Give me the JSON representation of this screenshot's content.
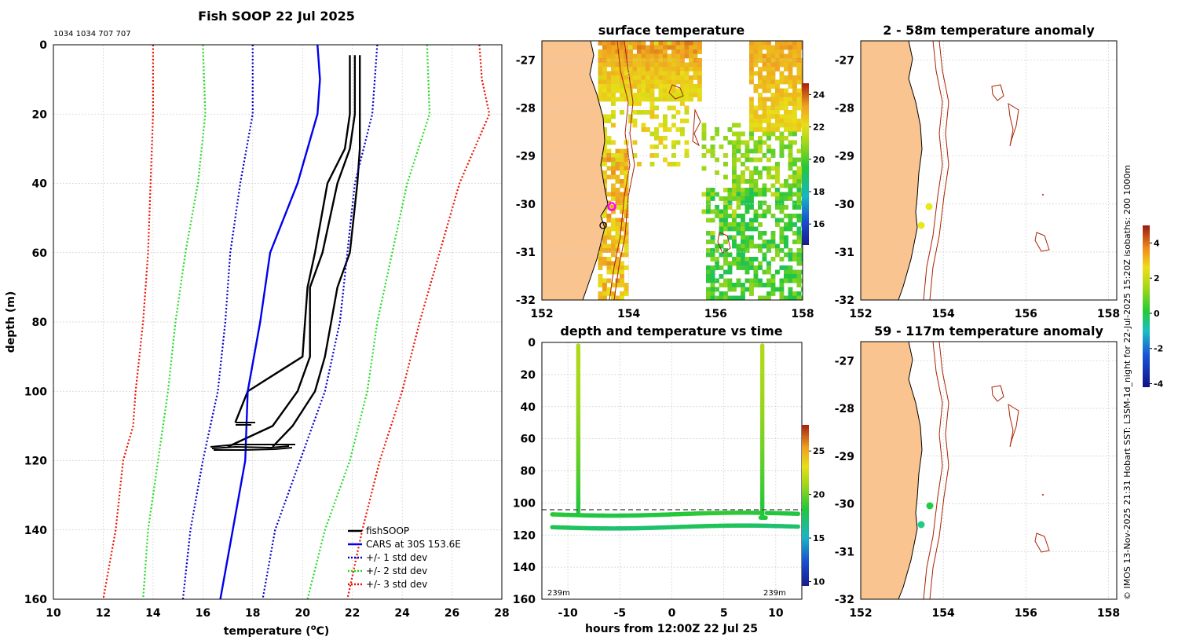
{
  "profile_panel": {
    "title": "Fish SOOP 22 Jul 2025",
    "counts": "1034 1034 707 707",
    "xlabel": "temperature (",
    "xlabel_sup": "o",
    "xlabel_end": "C)",
    "ylabel": "depth (m)",
    "legend": [
      "fishSOOP",
      "CARS at 30S 153.6E",
      "+/- 1 std dev",
      "+/- 2 std dev",
      "+/- 3 std dev"
    ]
  },
  "surface_panel": {
    "title": "surface temperature"
  },
  "time_panel": {
    "title": "depth and temperature vs time",
    "xlabel": "hours from 12:00Z 22 Jul 25",
    "depth_left": "239m",
    "depth_right": "239m"
  },
  "anom1_panel": {
    "title": "2 - 58m temperature anomaly"
  },
  "anom2_panel": {
    "title": "59 - 117m temperature anomaly"
  },
  "side_caption": "© IMOS 13-Nov-2025 21:31 Hobart SST: L3SM-1d_night for 22-Jul-2025 15:20Z isobaths: 200  1000m",
  "colors": {
    "fish": "#000000",
    "cars": "#0000ee",
    "std1": "#0000cc",
    "std2": "#22dd22",
    "std3": "#ee1100",
    "land": "#f9c48f",
    "isobath": "#aa2200",
    "marker_magenta": "#ff00ff",
    "marker_yellow": "#e8e81a",
    "marker_green": "#22cc44"
  },
  "chart_data": [
    {
      "type": "line",
      "title": "Fish SOOP 22 Jul 2025",
      "xlabel": "temperature (oC)",
      "ylabel": "depth (m)",
      "xlim": [
        10,
        28
      ],
      "ylim": [
        160,
        0
      ],
      "xticks": [
        10,
        12,
        14,
        16,
        18,
        20,
        22,
        24,
        26,
        28
      ],
      "yticks": [
        0,
        20,
        40,
        60,
        80,
        100,
        120,
        140,
        160
      ],
      "series": [
        {
          "name": "fishSOOP",
          "style": "solid",
          "color": "#000000",
          "depth": [
            3,
            20,
            30,
            40,
            60,
            70,
            90,
            100,
            110,
            116
          ],
          "temp": [
            22.1,
            22.1,
            21.9,
            21.4,
            20.8,
            20.3,
            20.3,
            19.8,
            18.8,
            17.0
          ]
        },
        {
          "name": "fishSOOP",
          "style": "solid",
          "color": "#000000",
          "depth": [
            3,
            20,
            30,
            40,
            60,
            70,
            90,
            100,
            110,
            116
          ],
          "temp": [
            22.3,
            22.3,
            22.3,
            22.2,
            21.9,
            21.4,
            20.9,
            20.5,
            19.6,
            18.8
          ]
        },
        {
          "name": "fishSOOP",
          "style": "solid",
          "color": "#000000",
          "depth": [
            3,
            20,
            30,
            40,
            60,
            70,
            90,
            95,
            100,
            109
          ],
          "temp": [
            21.9,
            21.9,
            21.7,
            21.0,
            20.5,
            20.2,
            20.0,
            18.9,
            17.8,
            17.3
          ]
        },
        {
          "name": "CARS at 30S 153.6E",
          "style": "solid",
          "color": "#0000ee",
          "depth": [
            0,
            10,
            20,
            40,
            60,
            80,
            100,
            120,
            140,
            160
          ],
          "temp": [
            20.6,
            20.7,
            20.6,
            19.8,
            18.7,
            18.3,
            17.8,
            17.7,
            17.2,
            16.7
          ]
        },
        {
          "name": "+/- 1 std dev (low)",
          "style": "dotted",
          "color": "#0000cc",
          "depth": [
            0,
            20,
            40,
            60,
            80,
            100,
            120,
            140,
            160
          ],
          "temp": [
            18.0,
            18.0,
            17.5,
            17.1,
            16.9,
            16.6,
            16.0,
            15.5,
            15.2
          ]
        },
        {
          "name": "+/- 1 std dev (high)",
          "style": "dotted",
          "color": "#0000cc",
          "depth": [
            0,
            20,
            40,
            60,
            80,
            100,
            120,
            140,
            160
          ],
          "temp": [
            23.0,
            22.8,
            22.1,
            21.8,
            21.5,
            20.9,
            19.9,
            18.9,
            18.4
          ]
        },
        {
          "name": "+/- 2 std dev (low)",
          "style": "dotted",
          "color": "#22dd22",
          "depth": [
            0,
            20,
            40,
            60,
            80,
            100,
            120,
            140,
            160
          ],
          "temp": [
            16.0,
            16.1,
            15.8,
            15.3,
            14.9,
            14.6,
            14.2,
            13.8,
            13.6
          ]
        },
        {
          "name": "+/- 2 std dev (high)",
          "style": "dotted",
          "color": "#22dd22",
          "depth": [
            0,
            20,
            40,
            60,
            80,
            100,
            120,
            140,
            160
          ],
          "temp": [
            25.0,
            25.1,
            24.2,
            23.6,
            23.0,
            22.6,
            21.9,
            20.9,
            20.2
          ]
        },
        {
          "name": "+/- 3 std dev (low)",
          "style": "dotted",
          "color": "#ee1100",
          "depth": [
            0,
            20,
            40,
            60,
            80,
            100,
            110,
            120,
            140,
            160
          ],
          "temp": [
            14.0,
            14.0,
            13.9,
            13.8,
            13.6,
            13.3,
            13.2,
            12.8,
            12.5,
            12.0
          ]
        },
        {
          "name": "+/- 3 std dev (high)",
          "style": "dotted",
          "color": "#ee1100",
          "depth": [
            0,
            10,
            20,
            40,
            60,
            80,
            100,
            120,
            140,
            160
          ],
          "temp": [
            27.1,
            27.2,
            27.5,
            26.3,
            25.5,
            24.7,
            24.0,
            23.1,
            22.4,
            21.8
          ]
        }
      ]
    },
    {
      "type": "heatmap",
      "title": "surface temperature",
      "xlim": [
        152,
        158
      ],
      "ylim": [
        -32,
        -26.6
      ],
      "xticks": [
        152,
        154,
        156,
        158
      ],
      "yticks": [
        -27,
        -28,
        -29,
        -30,
        -31,
        -32
      ],
      "colorbar": {
        "range": [
          14.7,
          24.7
        ],
        "ticks": [
          16,
          18,
          20,
          22,
          24
        ]
      },
      "markers": [
        {
          "lon": 153.6,
          "lat": -30.0,
          "color": "#ff00ff"
        },
        {
          "lon": 153.4,
          "lat": -30.4,
          "color": "#000000"
        }
      ]
    },
    {
      "type": "scatter",
      "title": "depth and temperature vs time",
      "xlabel": "hours from 12:00Z 22 Jul 25",
      "xlim": [
        -12.5,
        12.5
      ],
      "ylim": [
        160,
        0
      ],
      "xticks": [
        -10,
        -5,
        0,
        5,
        10
      ],
      "yticks": [
        0,
        20,
        40,
        60,
        80,
        100,
        120,
        140,
        160
      ],
      "dashed_line_depth": 104,
      "colorbar": {
        "range": [
          9.5,
          28
        ],
        "ticks": [
          10,
          15,
          20,
          25
        ]
      },
      "casts": [
        {
          "hours": -9,
          "depth": [
            2,
            107
          ],
          "temp": [
            21.6,
            18.2
          ]
        },
        {
          "hours": 8.7,
          "depth": [
            2,
            108
          ],
          "temp": [
            21.6,
            18.2
          ]
        }
      ],
      "tows": [
        {
          "depth": [
            107,
            109,
            108,
            109,
            108
          ],
          "hours": [
            -11.5,
            -5,
            0,
            5,
            12
          ]
        },
        {
          "depth": [
            115,
            116,
            115,
            116,
            116
          ],
          "hours": [
            -11.5,
            -5,
            0,
            5,
            12
          ]
        }
      ]
    },
    {
      "type": "scatter",
      "title": "2 - 58m temperature anomaly",
      "xlim": [
        152,
        158.2
      ],
      "ylim": [
        -32,
        -26.6
      ],
      "xticks": [
        152,
        154,
        156,
        158
      ],
      "yticks": [
        -27,
        -28,
        -29,
        -30,
        -31,
        -32
      ],
      "colorbar": {
        "range": [
          -4.2,
          5
        ],
        "ticks": [
          -4,
          -2,
          0,
          2,
          4
        ]
      },
      "points": [
        {
          "lon": 153.5,
          "lat": -30.0,
          "anomaly": 2.0
        },
        {
          "lon": 153.3,
          "lat": -30.4,
          "anomaly": 2.1
        }
      ]
    },
    {
      "type": "scatter",
      "title": "59 - 117m temperature anomaly",
      "xlim": [
        152,
        158.2
      ],
      "ylim": [
        -32,
        -26.6
      ],
      "xticks": [
        152,
        154,
        156,
        158
      ],
      "yticks": [
        -27,
        -28,
        -29,
        -30,
        -31,
        -32
      ],
      "points": [
        {
          "lon": 153.6,
          "lat": -30.0,
          "anomaly": 0.6
        },
        {
          "lon": 153.3,
          "lat": -30.4,
          "anomaly": -0.4
        }
      ]
    }
  ]
}
